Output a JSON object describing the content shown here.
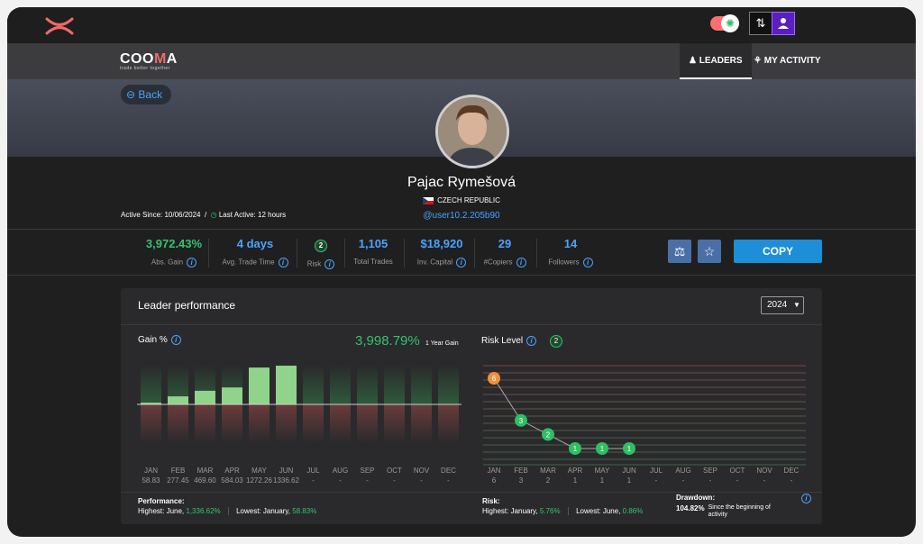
{
  "topbar": {
    "toggle_icon": "sun-icon",
    "sort_icon": "⇅",
    "user_icon": "user-switch-icon"
  },
  "nav": {
    "brand": "COOMA",
    "brand_m": "M",
    "brand_a": "A",
    "tagline": "trade better together",
    "tabs": [
      {
        "label": "LEADERS",
        "icon": "leaders-icon"
      },
      {
        "label": "MY ACTIVITY",
        "icon": "activity-icon"
      }
    ]
  },
  "hero": {
    "back_label": "Back"
  },
  "profile": {
    "name": "Pajac Rymešová",
    "country": "CZECH REPUBLIC",
    "handle": "@user10.2.205b90",
    "active_since": "Active Since: 10/06/2024",
    "last_active": "Last Active: 12 hours"
  },
  "stats": [
    {
      "value": "3,972.43%",
      "label": "Abs. Gain"
    },
    {
      "value": "4 days",
      "label": "Avg. Trade Time"
    },
    {
      "value": "2",
      "label": "Risk"
    },
    {
      "value": "1,105",
      "label": "Total Trades"
    },
    {
      "value": "$18,920",
      "label": "Inv. Capital"
    },
    {
      "value": "29",
      "label": "#Copiers"
    },
    {
      "value": "14",
      "label": "Followers"
    }
  ],
  "actions": {
    "copy_label": "COPY"
  },
  "panel": {
    "title": "Leader performance",
    "year": "2024",
    "gain_title": "Gain %",
    "gain_total": "3,998.79%",
    "gain_caption": "1 Year Gain",
    "risk_title": "Risk Level",
    "risk_badge": "2"
  },
  "chart_data": [
    {
      "type": "bar",
      "title": "Gain %",
      "categories": [
        "JAN",
        "FEB",
        "MAR",
        "APR",
        "MAY",
        "JUN",
        "JUL",
        "AUG",
        "SEP",
        "OCT",
        "NOV",
        "DEC"
      ],
      "value_labels": [
        "58.83",
        "277.45",
        "469.60",
        "584.03",
        "1272.26",
        "1336.62",
        "-",
        "-",
        "-",
        "-",
        "-",
        "-"
      ],
      "values": [
        58.83,
        277.45,
        469.6,
        584.03,
        1272.26,
        1336.62,
        null,
        null,
        null,
        null,
        null,
        null
      ],
      "ylim": [
        -1336.62,
        1336.62
      ]
    },
    {
      "type": "line",
      "title": "Risk Level",
      "categories": [
        "JAN",
        "FEB",
        "MAR",
        "APR",
        "MAY",
        "JUN",
        "JUL",
        "AUG",
        "SEP",
        "OCT",
        "NOV",
        "DEC"
      ],
      "value_labels": [
        "6",
        "3",
        "2",
        "1",
        "1",
        "1",
        "-",
        "-",
        "-",
        "-",
        "-",
        "-"
      ],
      "values": [
        6,
        3,
        2,
        1,
        1,
        1,
        null,
        null,
        null,
        null,
        null,
        null
      ],
      "ylim": [
        0,
        7
      ]
    }
  ],
  "footer": {
    "performance_title": "Performance:",
    "perf_high_label": "Highest: June,",
    "perf_high_value": "1,336.62%",
    "perf_low_label": "Lowest: January,",
    "perf_low_value": "58.83%",
    "risk_title": "Risk:",
    "risk_high_label": "Highest: January,",
    "risk_high_value": "5.76%",
    "risk_low_label": "Lowest: June,",
    "risk_low_value": "0.86%",
    "drawdown_title": "Drawdown:",
    "drawdown_value": "104.82%",
    "drawdown_caption": "Since the beginning of activity"
  },
  "colors": {
    "accent": "#4aa3ff",
    "positive": "#36c26c",
    "copy": "#1c8fd8",
    "risk_high": "#f0903c"
  }
}
